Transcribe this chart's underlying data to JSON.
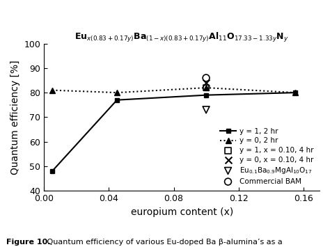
{
  "xlabel": "europium content (x)",
  "ylabel": "Quantum efficiency [%]",
  "ylim": [
    40,
    100
  ],
  "xlim": [
    0.0,
    0.17
  ],
  "xticks": [
    0.0,
    0.04,
    0.08,
    0.12,
    0.16
  ],
  "yticks": [
    40,
    50,
    60,
    70,
    80,
    90,
    100
  ],
  "line1_x": [
    0.005,
    0.045,
    0.1,
    0.155
  ],
  "line1_y": [
    48,
    77,
    79,
    80
  ],
  "line1_label": "y = 1, 2 hr",
  "line2_x": [
    0.005,
    0.045,
    0.1,
    0.155
  ],
  "line2_y": [
    81,
    80,
    82,
    80
  ],
  "line2_label": "y = 0, 2 hr",
  "scatter_sq_x": [
    0.1
  ],
  "scatter_sq_y": [
    82
  ],
  "scatter_sq_label": "y = 1, x = 0.10, 4 hr",
  "scatter_x_x": [
    0.1
  ],
  "scatter_x_y": [
    84
  ],
  "scatter_x_label": "y = 0, x = 0.10, 4 hr",
  "scatter_tri_x": [
    0.1
  ],
  "scatter_tri_y": [
    73
  ],
  "scatter_tri_label": "Eu$_{0.1}$Ba$_{0.9}$MgAl$_{10}$O$_{17}$",
  "scatter_circ_x": [
    0.1
  ],
  "scatter_circ_y": [
    86
  ],
  "scatter_circ_label": "Commercial BAM",
  "title_parts": "Eu$_{x(0.83+0.17y)}$Ba$_{(1-x)(0.83+0.17y)}$Al$_{11}$O$_{17.33-1.33y}$N$_y$",
  "caption_bold": "Figure 10.",
  "caption_normal": " Quantum efficiency of various Eu-doped Ba β-alumina’s as a"
}
